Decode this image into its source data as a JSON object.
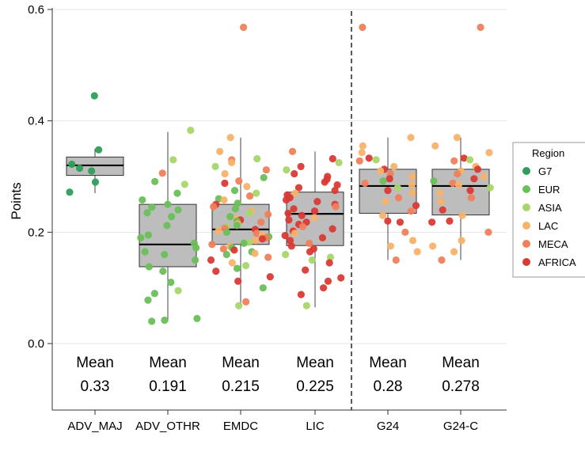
{
  "chart_data": {
    "type": "box",
    "ylabel": "Points",
    "ylim": [
      0,
      0.6
    ],
    "yticks": [
      "0.0",
      "0.2",
      "0.4",
      "0.6"
    ],
    "grid": true,
    "legend": {
      "title": "Region",
      "placement": "right",
      "entries": [
        {
          "name": "G7",
          "color": "#2e9e5b"
        },
        {
          "name": "EUR",
          "color": "#6cbf5a"
        },
        {
          "name": "ASIA",
          "color": "#a8d66a"
        },
        {
          "name": "LAC",
          "color": "#f7b36b"
        },
        {
          "name": "MECA",
          "color": "#f0805a"
        },
        {
          "name": "AFRICA",
          "color": "#d93a35"
        }
      ]
    },
    "mean_word": "Mean",
    "separator_after": "LIC",
    "groups": [
      {
        "category": "ADV_MAJ",
        "mean": "0.33",
        "box": {
          "q1": 0.302,
          "median": 0.32,
          "q3": 0.335,
          "whisker_low": 0.27,
          "whisker_high": 0.35
        },
        "points": [
          {
            "y": 0.445,
            "r": "G7"
          },
          {
            "y": 0.348,
            "r": "G7"
          },
          {
            "y": 0.322,
            "r": "G7"
          },
          {
            "y": 0.315,
            "r": "G7"
          },
          {
            "y": 0.31,
            "r": "G7"
          },
          {
            "y": 0.29,
            "r": "G7"
          },
          {
            "y": 0.272,
            "r": "G7"
          }
        ]
      },
      {
        "category": "ADV_OTHR",
        "mean": "0.191",
        "box": {
          "q1": 0.138,
          "median": 0.178,
          "q3": 0.25,
          "whisker_low": 0.04,
          "whisker_high": 0.38
        },
        "points": [
          {
            "y": 0.383,
            "r": "ASIA"
          },
          {
            "y": 0.33,
            "r": "ASIA"
          },
          {
            "y": 0.306,
            "r": "MECA"
          },
          {
            "y": 0.291,
            "r": "EUR"
          },
          {
            "y": 0.286,
            "r": "ASIA"
          },
          {
            "y": 0.27,
            "r": "EUR"
          },
          {
            "y": 0.258,
            "r": "EUR"
          },
          {
            "y": 0.25,
            "r": "EUR"
          },
          {
            "y": 0.245,
            "r": "EUR"
          },
          {
            "y": 0.24,
            "r": "EUR"
          },
          {
            "y": 0.235,
            "r": "EUR"
          },
          {
            "y": 0.228,
            "r": "EUR"
          },
          {
            "y": 0.212,
            "r": "EUR"
          },
          {
            "y": 0.195,
            "r": "EUR"
          },
          {
            "y": 0.19,
            "r": "EUR"
          },
          {
            "y": 0.18,
            "r": "EUR"
          },
          {
            "y": 0.172,
            "r": "EUR"
          },
          {
            "y": 0.165,
            "r": "EUR"
          },
          {
            "y": 0.16,
            "r": "EUR"
          },
          {
            "y": 0.15,
            "r": "EUR"
          },
          {
            "y": 0.138,
            "r": "EUR"
          },
          {
            "y": 0.13,
            "r": "EUR"
          },
          {
            "y": 0.11,
            "r": "EUR"
          },
          {
            "y": 0.095,
            "r": "ASIA"
          },
          {
            "y": 0.09,
            "r": "EUR"
          },
          {
            "y": 0.078,
            "r": "EUR"
          },
          {
            "y": 0.045,
            "r": "EUR"
          },
          {
            "y": 0.042,
            "r": "EUR"
          },
          {
            "y": 0.04,
            "r": "EUR"
          }
        ]
      },
      {
        "category": "EMDC",
        "mean": "0.215",
        "box": {
          "q1": 0.178,
          "median": 0.205,
          "q3": 0.25,
          "whisker_low": 0.07,
          "whisker_high": 0.37
        },
        "points": [
          {
            "y": 0.568,
            "r": "MECA"
          },
          {
            "y": 0.37,
            "r": "LAC"
          },
          {
            "y": 0.345,
            "r": "LAC"
          },
          {
            "y": 0.332,
            "r": "ASIA"
          },
          {
            "y": 0.33,
            "r": "MECA"
          },
          {
            "y": 0.325,
            "r": "LAC"
          },
          {
            "y": 0.318,
            "r": "ASIA"
          },
          {
            "y": 0.312,
            "r": "MECA"
          },
          {
            "y": 0.305,
            "r": "LAC"
          },
          {
            "y": 0.298,
            "r": "EUR"
          },
          {
            "y": 0.292,
            "r": "MECA"
          },
          {
            "y": 0.288,
            "r": "AFRICA"
          },
          {
            "y": 0.282,
            "r": "LAC"
          },
          {
            "y": 0.275,
            "r": "EUR"
          },
          {
            "y": 0.27,
            "r": "ASIA"
          },
          {
            "y": 0.265,
            "r": "MECA"
          },
          {
            "y": 0.26,
            "r": "EUR"
          },
          {
            "y": 0.258,
            "r": "LAC"
          },
          {
            "y": 0.252,
            "r": "EUR"
          },
          {
            "y": 0.25,
            "r": "AFRICA"
          },
          {
            "y": 0.246,
            "r": "MECA"
          },
          {
            "y": 0.242,
            "r": "EUR"
          },
          {
            "y": 0.238,
            "r": "LAC"
          },
          {
            "y": 0.235,
            "r": "ASIA"
          },
          {
            "y": 0.232,
            "r": "MECA"
          },
          {
            "y": 0.228,
            "r": "EUR"
          },
          {
            "y": 0.225,
            "r": "LAC"
          },
          {
            "y": 0.222,
            "r": "AFRICA"
          },
          {
            "y": 0.22,
            "r": "EUR"
          },
          {
            "y": 0.218,
            "r": "MECA"
          },
          {
            "y": 0.215,
            "r": "LAC"
          },
          {
            "y": 0.212,
            "r": "EUR"
          },
          {
            "y": 0.21,
            "r": "ASIA"
          },
          {
            "y": 0.207,
            "r": "MECA"
          },
          {
            "y": 0.205,
            "r": "AFRICA"
          },
          {
            "y": 0.202,
            "r": "LAC"
          },
          {
            "y": 0.2,
            "r": "EUR"
          },
          {
            "y": 0.198,
            "r": "MECA"
          },
          {
            "y": 0.195,
            "r": "LAC"
          },
          {
            "y": 0.192,
            "r": "EUR"
          },
          {
            "y": 0.19,
            "r": "MECA"
          },
          {
            "y": 0.188,
            "r": "AFRICA"
          },
          {
            "y": 0.185,
            "r": "LAC"
          },
          {
            "y": 0.182,
            "r": "ASIA"
          },
          {
            "y": 0.18,
            "r": "EUR"
          },
          {
            "y": 0.178,
            "r": "MECA"
          },
          {
            "y": 0.175,
            "r": "LAC"
          },
          {
            "y": 0.172,
            "r": "EUR"
          },
          {
            "y": 0.17,
            "r": "MECA"
          },
          {
            "y": 0.168,
            "r": "AFRICA"
          },
          {
            "y": 0.165,
            "r": "EUR"
          },
          {
            "y": 0.162,
            "r": "LAC"
          },
          {
            "y": 0.16,
            "r": "EUR"
          },
          {
            "y": 0.155,
            "r": "MECA"
          },
          {
            "y": 0.15,
            "r": "AFRICA"
          },
          {
            "y": 0.145,
            "r": "LAC"
          },
          {
            "y": 0.14,
            "r": "ASIA"
          },
          {
            "y": 0.135,
            "r": "EUR"
          },
          {
            "y": 0.13,
            "r": "AFRICA"
          },
          {
            "y": 0.12,
            "r": "AFRICA"
          },
          {
            "y": 0.112,
            "r": "AFRICA"
          },
          {
            "y": 0.1,
            "r": "EUR"
          },
          {
            "y": 0.075,
            "r": "MECA"
          },
          {
            "y": 0.068,
            "r": "ASIA"
          }
        ]
      },
      {
        "category": "LIC",
        "mean": "0.225",
        "box": {
          "q1": 0.176,
          "median": 0.233,
          "q3": 0.272,
          "whisker_low": 0.065,
          "whisker_high": 0.345
        },
        "points": [
          {
            "y": 0.345,
            "r": "MECA"
          },
          {
            "y": 0.332,
            "r": "AFRICA"
          },
          {
            "y": 0.325,
            "r": "ASIA"
          },
          {
            "y": 0.318,
            "r": "AFRICA"
          },
          {
            "y": 0.312,
            "r": "ASIA"
          },
          {
            "y": 0.305,
            "r": "AFRICA"
          },
          {
            "y": 0.3,
            "r": "AFRICA"
          },
          {
            "y": 0.295,
            "r": "AFRICA"
          },
          {
            "y": 0.29,
            "r": "AFRICA"
          },
          {
            "y": 0.285,
            "r": "AFRICA"
          },
          {
            "y": 0.28,
            "r": "AFRICA"
          },
          {
            "y": 0.275,
            "r": "AFRICA"
          },
          {
            "y": 0.27,
            "r": "LAC"
          },
          {
            "y": 0.267,
            "r": "AFRICA"
          },
          {
            "y": 0.262,
            "r": "AFRICA"
          },
          {
            "y": 0.258,
            "r": "AFRICA"
          },
          {
            "y": 0.255,
            "r": "AFRICA"
          },
          {
            "y": 0.25,
            "r": "AFRICA"
          },
          {
            "y": 0.246,
            "r": "MECA"
          },
          {
            "y": 0.242,
            "r": "AFRICA"
          },
          {
            "y": 0.238,
            "r": "AFRICA"
          },
          {
            "y": 0.234,
            "r": "AFRICA"
          },
          {
            "y": 0.23,
            "r": "AFRICA"
          },
          {
            "y": 0.226,
            "r": "LAC"
          },
          {
            "y": 0.222,
            "r": "AFRICA"
          },
          {
            "y": 0.218,
            "r": "AFRICA"
          },
          {
            "y": 0.214,
            "r": "AFRICA"
          },
          {
            "y": 0.21,
            "r": "MECA"
          },
          {
            "y": 0.206,
            "r": "AFRICA"
          },
          {
            "y": 0.202,
            "r": "AFRICA"
          },
          {
            "y": 0.198,
            "r": "LAC"
          },
          {
            "y": 0.194,
            "r": "AFRICA"
          },
          {
            "y": 0.19,
            "r": "AFRICA"
          },
          {
            "y": 0.185,
            "r": "AFRICA"
          },
          {
            "y": 0.18,
            "r": "MECA"
          },
          {
            "y": 0.175,
            "r": "AFRICA"
          },
          {
            "y": 0.17,
            "r": "AFRICA"
          },
          {
            "y": 0.165,
            "r": "AFRICA"
          },
          {
            "y": 0.16,
            "r": "ASIA"
          },
          {
            "y": 0.155,
            "r": "ASIA"
          },
          {
            "y": 0.15,
            "r": "ASIA"
          },
          {
            "y": 0.145,
            "r": "AFRICA"
          },
          {
            "y": 0.132,
            "r": "AFRICA"
          },
          {
            "y": 0.118,
            "r": "AFRICA"
          },
          {
            "y": 0.112,
            "r": "AFRICA"
          },
          {
            "y": 0.1,
            "r": "AFRICA"
          },
          {
            "y": 0.088,
            "r": "AFRICA"
          },
          {
            "y": 0.068,
            "r": "ASIA"
          }
        ]
      },
      {
        "category": "G24",
        "mean": "0.28",
        "box": {
          "q1": 0.234,
          "median": 0.283,
          "q3": 0.313,
          "whisker_low": 0.15,
          "whisker_high": 0.37
        },
        "points": [
          {
            "y": 0.568,
            "r": "MECA"
          },
          {
            "y": 0.37,
            "r": "LAC"
          },
          {
            "y": 0.355,
            "r": "LAC"
          },
          {
            "y": 0.343,
            "r": "LAC"
          },
          {
            "y": 0.333,
            "r": "AFRICA"
          },
          {
            "y": 0.33,
            "r": "ASIA"
          },
          {
            "y": 0.328,
            "r": "MECA"
          },
          {
            "y": 0.318,
            "r": "LAC"
          },
          {
            "y": 0.313,
            "r": "AFRICA"
          },
          {
            "y": 0.31,
            "r": "LAC"
          },
          {
            "y": 0.305,
            "r": "MECA"
          },
          {
            "y": 0.3,
            "r": "LAC"
          },
          {
            "y": 0.296,
            "r": "AFRICA"
          },
          {
            "y": 0.292,
            "r": "EUR"
          },
          {
            "y": 0.288,
            "r": "MECA"
          },
          {
            "y": 0.285,
            "r": "LAC"
          },
          {
            "y": 0.28,
            "r": "ASIA"
          },
          {
            "y": 0.275,
            "r": "AFRICA"
          },
          {
            "y": 0.27,
            "r": "LAC"
          },
          {
            "y": 0.262,
            "r": "MECA"
          },
          {
            "y": 0.255,
            "r": "LAC"
          },
          {
            "y": 0.248,
            "r": "AFRICA"
          },
          {
            "y": 0.238,
            "r": "MECA"
          },
          {
            "y": 0.23,
            "r": "LAC"
          },
          {
            "y": 0.22,
            "r": "AFRICA"
          },
          {
            "y": 0.218,
            "r": "AFRICA"
          },
          {
            "y": 0.2,
            "r": "MECA"
          },
          {
            "y": 0.185,
            "r": "LAC"
          },
          {
            "y": 0.175,
            "r": "LAC"
          },
          {
            "y": 0.165,
            "r": "LAC"
          },
          {
            "y": 0.15,
            "r": "MECA"
          }
        ]
      },
      {
        "category": "G24-C",
        "mean": "0.278",
        "box": {
          "q1": 0.231,
          "median": 0.283,
          "q3": 0.313,
          "whisker_low": 0.15,
          "whisker_high": 0.37
        },
        "points": [
          {
            "y": 0.568,
            "r": "MECA"
          },
          {
            "y": 0.37,
            "r": "LAC"
          },
          {
            "y": 0.355,
            "r": "LAC"
          },
          {
            "y": 0.343,
            "r": "LAC"
          },
          {
            "y": 0.333,
            "r": "AFRICA"
          },
          {
            "y": 0.33,
            "r": "ASIA"
          },
          {
            "y": 0.328,
            "r": "MECA"
          },
          {
            "y": 0.318,
            "r": "LAC"
          },
          {
            "y": 0.313,
            "r": "AFRICA"
          },
          {
            "y": 0.31,
            "r": "LAC"
          },
          {
            "y": 0.305,
            "r": "MECA"
          },
          {
            "y": 0.3,
            "r": "LAC"
          },
          {
            "y": 0.296,
            "r": "AFRICA"
          },
          {
            "y": 0.292,
            "r": "EUR"
          },
          {
            "y": 0.288,
            "r": "MECA"
          },
          {
            "y": 0.285,
            "r": "LAC"
          },
          {
            "y": 0.28,
            "r": "ASIA"
          },
          {
            "y": 0.275,
            "r": "AFRICA"
          },
          {
            "y": 0.27,
            "r": "LAC"
          },
          {
            "y": 0.262,
            "r": "MECA"
          },
          {
            "y": 0.255,
            "r": "LAC"
          },
          {
            "y": 0.24,
            "r": "AFRICA"
          },
          {
            "y": 0.23,
            "r": "LAC"
          },
          {
            "y": 0.22,
            "r": "AFRICA"
          },
          {
            "y": 0.218,
            "r": "AFRICA"
          },
          {
            "y": 0.2,
            "r": "MECA"
          },
          {
            "y": 0.185,
            "r": "LAC"
          },
          {
            "y": 0.175,
            "r": "LAC"
          },
          {
            "y": 0.165,
            "r": "LAC"
          },
          {
            "y": 0.15,
            "r": "MECA"
          }
        ]
      }
    ]
  }
}
